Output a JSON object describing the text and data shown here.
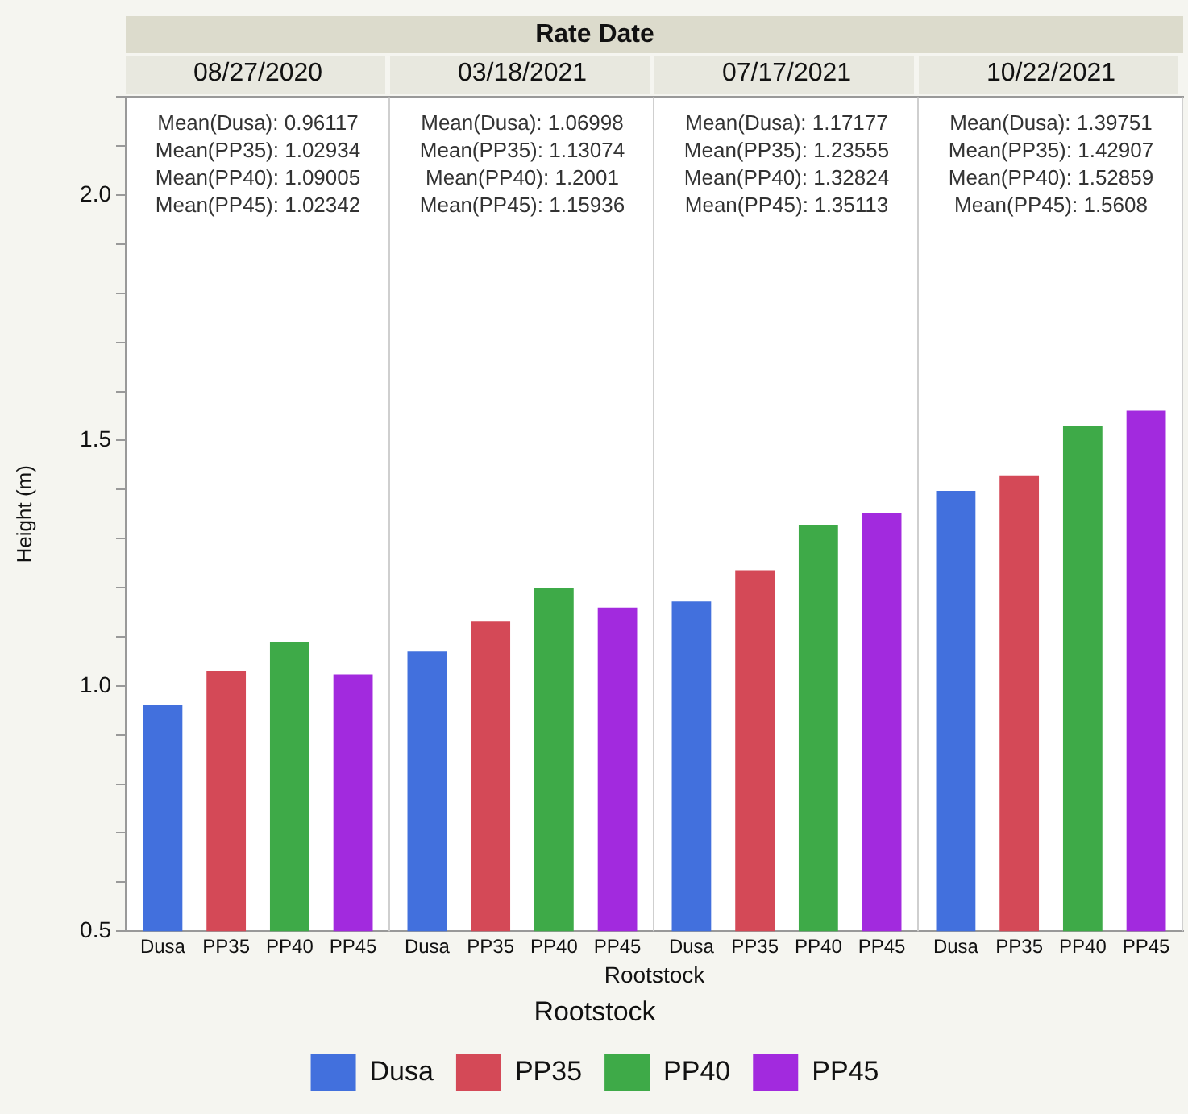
{
  "chart_data": {
    "type": "bar",
    "title": "Rate Date",
    "ylabel": "Height (m)",
    "xlabel": "Rootstock",
    "legend": "bottom",
    "legend_title": "Rootstock",
    "categories": [
      "08/27/2020",
      "03/18/2021",
      "07/17/2021",
      "10/22/2021"
    ],
    "series": [
      {
        "name": "Dusa",
        "color": "#4270dd",
        "values": [
          0.96117,
          1.06998,
          1.17177,
          1.39751
        ]
      },
      {
        "name": "PP35",
        "color": "#d44957",
        "values": [
          1.02934,
          1.13074,
          1.23555,
          1.42907
        ]
      },
      {
        "name": "PP40",
        "color": "#3eaa48",
        "values": [
          1.09005,
          1.2001,
          1.32824,
          1.52859
        ]
      },
      {
        "name": "PP45",
        "color": "#a22ade",
        "values": [
          1.02342,
          1.15936,
          1.35113,
          1.5608
        ]
      }
    ],
    "ylim": [
      0.5,
      2.2
    ],
    "yticks": [
      0.5,
      {
        "value": 0.6,
        "label": null
      },
      {
        "value": 0.7,
        "label": null
      },
      {
        "value": 0.8,
        "label": null
      },
      {
        "value": 0.9,
        "label": null
      },
      {
        "value": 1.0,
        "label": "1.0"
      },
      {
        "value": 1.1,
        "label": null
      },
      {
        "value": 1.2,
        "label": null
      },
      {
        "value": 1.3,
        "label": null
      },
      {
        "value": 1.4,
        "label": null
      },
      1.5,
      {
        "value": 1.6,
        "label": null
      },
      {
        "value": 1.7,
        "label": null
      },
      {
        "value": 1.8,
        "label": null
      },
      {
        "value": 1.9,
        "label": null
      },
      {
        "value": 2.0,
        "label": "2.0"
      },
      {
        "value": 2.1,
        "label": null
      },
      {
        "value": 2.2,
        "label": null
      }
    ],
    "annotations": [
      "Mean(Dusa): 0.96117",
      "Mean(PP35): 1.02934",
      "Mean(PP40): 1.09005",
      "Mean(PP45): 1.02342",
      "Mean(Dusa): 1.06998",
      "Mean(PP35): 1.13074",
      "Mean(PP40): 1.2001",
      "Mean(PP45): 1.15936",
      "Mean(Dusa): 1.17177",
      "Mean(PP35): 1.23555",
      "Mean(PP40): 1.32824",
      "Mean(PP45): 1.35113",
      "Mean(Dusa): 1.39751",
      "Mean(PP35): 1.42907",
      "Mean(PP40): 1.52859",
      "Mean(PP45): 1.5608"
    ]
  }
}
